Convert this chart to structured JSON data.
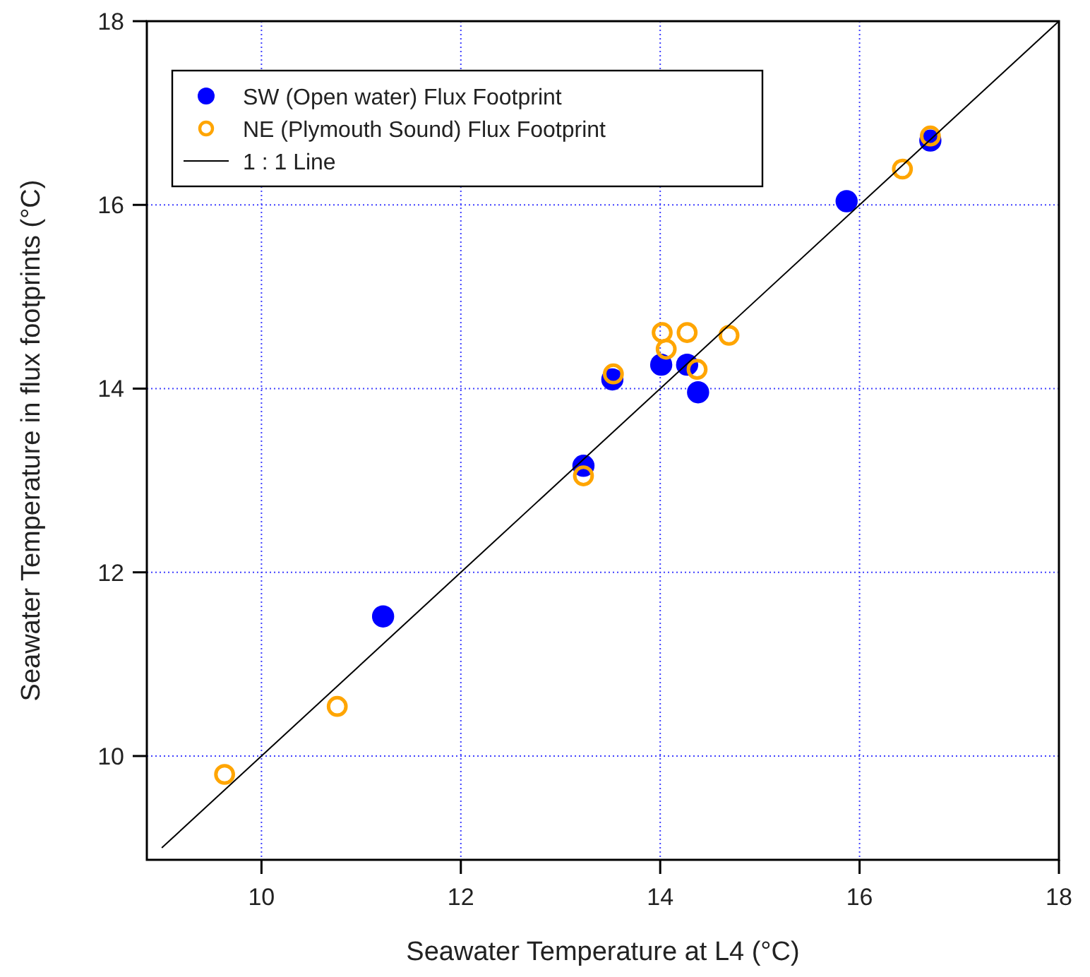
{
  "chart_data": {
    "type": "scatter",
    "xlabel": "Seawater Temperature at L4 (°C)",
    "ylabel": "Seawater Temperature in flux footprints (°C)",
    "xlim": [
      8.85,
      18
    ],
    "ylim": [
      8.87,
      18
    ],
    "xticks": [
      10,
      12,
      14,
      16,
      18
    ],
    "yticks": [
      10,
      12,
      14,
      16,
      18
    ],
    "grid": true,
    "legend": "top left",
    "series": [
      {
        "name": "SW (Open water) Flux Footprint",
        "color": "#0000ff",
        "marker": "circle",
        "x": [
          11.22,
          13.23,
          13.52,
          14.01,
          14.27,
          14.38,
          15.87,
          16.71
        ],
        "values": [
          11.52,
          13.16,
          14.1,
          14.26,
          14.26,
          13.96,
          16.04,
          16.7
        ]
      },
      {
        "name": "NE (Plymouth Sound) Flux Footprint",
        "color": "#ffa500",
        "marker": "circle",
        "x": [
          9.63,
          10.76,
          13.23,
          13.53,
          14.02,
          14.06,
          14.27,
          14.37,
          14.69,
          16.43,
          16.71
        ],
        "values": [
          9.8,
          10.54,
          13.05,
          14.16,
          14.61,
          14.43,
          14.61,
          14.21,
          14.58,
          16.39,
          16.75
        ]
      },
      {
        "name": "1 : 1 Line",
        "type": "line",
        "color": "#000000",
        "x": [
          9,
          18
        ],
        "values": [
          9,
          18
        ],
        "line_style": "solid",
        "marker": "none"
      }
    ]
  }
}
